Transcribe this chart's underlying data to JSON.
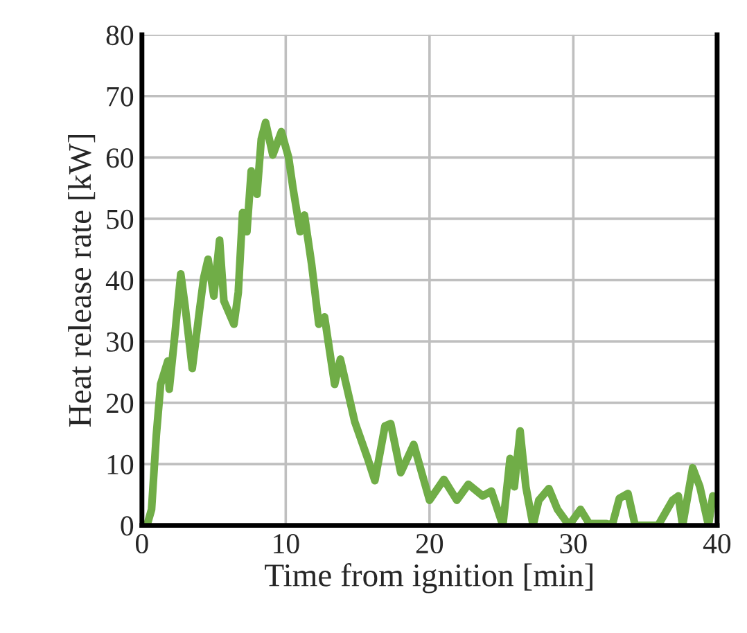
{
  "chart_data": {
    "type": "line",
    "xlabel": "Time from ignition [min]",
    "ylabel": "Heat release rate [kW]",
    "xlim": [
      0,
      40
    ],
    "xticks": [
      0,
      10,
      20,
      30,
      40
    ],
    "ylim": [
      0,
      80
    ],
    "yticks": [
      0,
      10,
      20,
      30,
      40,
      50,
      60,
      70,
      80
    ],
    "grid": true,
    "marker": "none",
    "line_style": "solid",
    "series": [
      {
        "color": "#70ad47",
        "x": [
          0.35,
          0.67,
          1.0,
          1.3,
          1.8,
          1.9,
          2.3,
          2.7,
          3.0,
          3.5,
          4.0,
          4.3,
          4.6,
          5.0,
          5.4,
          5.7,
          6.4,
          6.7,
          7.0,
          7.3,
          7.6,
          8.0,
          8.3,
          8.6,
          9.1,
          9.7,
          10.2,
          10.5,
          11.0,
          11.3,
          11.8,
          12.3,
          12.7,
          13.4,
          13.8,
          14.8,
          15.7,
          16.2,
          16.9,
          17.3,
          18.0,
          18.9,
          20.0,
          21.0,
          21.9,
          22.7,
          23.7,
          24.3,
          25.1,
          25.6,
          25.9,
          26.3,
          26.7,
          27.2,
          27.6,
          28.3,
          28.9,
          29.7,
          30.5,
          31.1,
          32.3,
          32.7,
          33.2,
          33.8,
          34.3,
          35.9,
          36.9,
          37.3,
          37.6,
          38.3,
          38.8,
          39.4,
          39.7
        ],
        "values": [
          0,
          2.6,
          14.7,
          23,
          26.8,
          22.2,
          31.3,
          41,
          35.8,
          25.6,
          35,
          40.4,
          43.4,
          37.4,
          46.5,
          36.6,
          32.8,
          38,
          51,
          47.9,
          57.8,
          54,
          63,
          65.7,
          60.4,
          64.2,
          60,
          55.1,
          47.9,
          50.6,
          42.6,
          32.8,
          34,
          23,
          27.1,
          16.9,
          10.9,
          7.3,
          16.2,
          16.6,
          8.6,
          13.2,
          4.1,
          7.5,
          4.1,
          6.7,
          4.8,
          5.6,
          0,
          10.9,
          6.3,
          15.4,
          6.3,
          0,
          4.1,
          6.0,
          2.6,
          0,
          2.6,
          0.3,
          0.3,
          0,
          4.4,
          5.2,
          0,
          0,
          4.1,
          4.8,
          0,
          9.4,
          6.3,
          0,
          4.8
        ]
      }
    ]
  }
}
